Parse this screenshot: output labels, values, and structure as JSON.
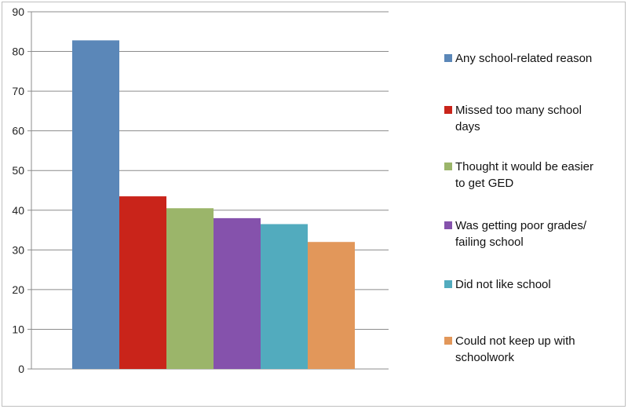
{
  "chart_data": {
    "type": "bar",
    "categories": [
      "Any school-related reason",
      "Missed too many school days",
      "Thought it would be easier to get GED",
      "Was getting poor grades/ failing school",
      "Did not like school",
      "Could not keep up with schoolwork"
    ],
    "values": [
      82.8,
      43.5,
      40.5,
      38.0,
      36.5,
      32.0
    ],
    "colors": [
      "#5b87b8",
      "#c9241a",
      "#9bb56a",
      "#8552ac",
      "#52abbe",
      "#e2975a"
    ],
    "ylim": [
      0,
      90
    ],
    "yticks": [
      "0",
      "10",
      "20",
      "30",
      "40",
      "50",
      "60",
      "70",
      "80",
      "90"
    ],
    "grid": true,
    "legend_position": "right",
    "legend_lines": [
      [
        "Any school-related reason"
      ],
      [
        "Missed too many school",
        "days"
      ],
      [
        "Thought it would be easier",
        "to get GED"
      ],
      [
        "Was getting poor grades/",
        "failing school"
      ],
      [
        "Did not like school"
      ],
      [
        "Could not keep up with",
        "schoolwork"
      ]
    ]
  }
}
